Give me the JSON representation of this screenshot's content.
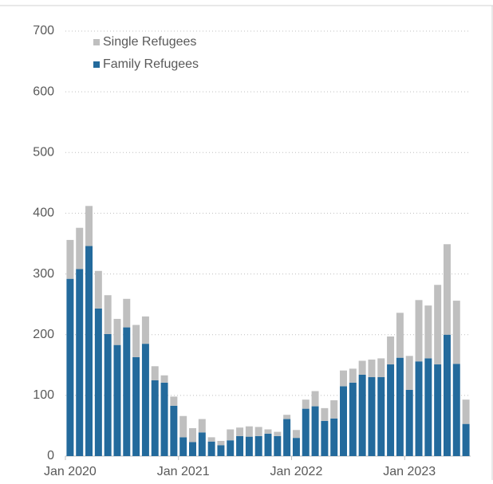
{
  "chart_data": {
    "type": "stacked_bar",
    "categories": [
      "Jan 2020",
      null,
      null,
      null,
      null,
      null,
      null,
      null,
      null,
      null,
      null,
      null,
      "Jan 2021",
      null,
      null,
      null,
      null,
      null,
      null,
      null,
      null,
      null,
      null,
      null,
      "Jan 2022",
      null,
      null,
      null,
      null,
      null,
      null,
      null,
      null,
      null,
      null,
      null,
      "Jan 2023",
      null,
      null,
      null,
      null,
      null,
      null
    ],
    "series": [
      {
        "name": "Family Refugees",
        "color": "#236a9c",
        "values": [
          292,
          308,
          346,
          243,
          201,
          183,
          212,
          163,
          185,
          125,
          121,
          83,
          31,
          23,
          39,
          24,
          18,
          26,
          33,
          32,
          33,
          37,
          33,
          61,
          30,
          78,
          82,
          58,
          62,
          115,
          121,
          134,
          130,
          130,
          151,
          162,
          109,
          156,
          161,
          151,
          200,
          152,
          53
        ]
      },
      {
        "name": "Single Refugees",
        "color": "#bfbfbf",
        "values": [
          64,
          68,
          66,
          62,
          64,
          43,
          47,
          53,
          45,
          23,
          12,
          15,
          35,
          23,
          22,
          7,
          7,
          18,
          14,
          17,
          15,
          7,
          7,
          7,
          13,
          15,
          25,
          21,
          30,
          26,
          23,
          23,
          29,
          31,
          46,
          74,
          56,
          101,
          87,
          131,
          149,
          104,
          40
        ]
      }
    ],
    "ylim": [
      0,
      700
    ],
    "yticks": [
      0,
      100,
      200,
      300,
      400,
      500,
      600,
      700
    ],
    "grid": true,
    "legend": "top-left"
  }
}
